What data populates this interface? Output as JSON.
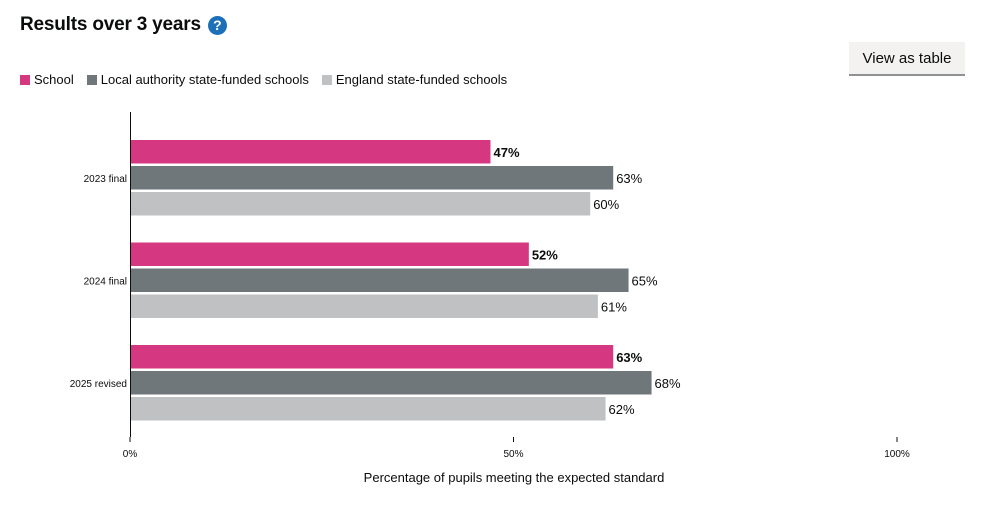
{
  "header": {
    "title": "Results over 3 years",
    "help_icon_glyph": "?",
    "view_table_label": "View as table"
  },
  "chart_data": {
    "type": "bar",
    "orientation": "horizontal",
    "categories": [
      "2023 final",
      "2024 final",
      "2025 revised"
    ],
    "series": [
      {
        "name": "School",
        "color": "#d53880",
        "values": [
          47,
          52,
          63
        ],
        "labels": [
          "47%",
          "52%",
          "63%"
        ],
        "bold_labels": true
      },
      {
        "name": "Local authority state-funded schools",
        "color": "#6f777b",
        "values": [
          63,
          65,
          68
        ],
        "labels": [
          "63%",
          "65%",
          "68%"
        ],
        "bold_labels": false
      },
      {
        "name": "England state-funded schools",
        "color": "#bfc1c3",
        "values": [
          60,
          61,
          62
        ],
        "labels": [
          "60%",
          "61%",
          "62%"
        ],
        "bold_labels": false
      }
    ],
    "xlim": [
      0,
      100
    ],
    "ticks": [
      0,
      50,
      100
    ],
    "tick_labels": [
      "0%",
      "50%",
      "100%"
    ],
    "xlabel": "Percentage of pupils meeting the expected standard",
    "legend_position": "top-left"
  }
}
